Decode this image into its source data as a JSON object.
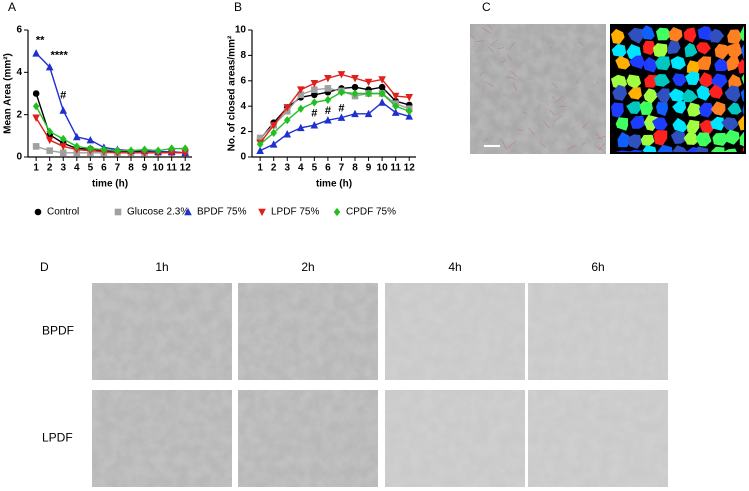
{
  "panel_labels": [
    "A",
    "B",
    "C",
    "D"
  ],
  "chart_data": [
    {
      "type": "line",
      "xlabel": "time (h)",
      "ylabel": "Mean Area (mm²)",
      "x": [
        1,
        2,
        3,
        4,
        5,
        6,
        7,
        8,
        9,
        10,
        11,
        12
      ],
      "xlim": [
        0.4,
        12.5
      ],
      "xticks": [
        1,
        2,
        3,
        4,
        5,
        6,
        7,
        8,
        9,
        10,
        11,
        12
      ],
      "ylim": [
        0,
        6
      ],
      "yticks": [
        0,
        2,
        4,
        6
      ],
      "series": [
        {
          "name": "Control",
          "color": "#000000",
          "marker": "circle",
          "values": [
            3.0,
            1.05,
            0.65,
            0.4,
            0.38,
            0.3,
            0.28,
            0.25,
            0.25,
            0.2,
            0.22,
            0.2
          ]
        },
        {
          "name": "Glucose 2.3%",
          "color": "#a0a0a0",
          "marker": "square",
          "values": [
            0.5,
            0.3,
            0.2,
            0.2,
            0.2,
            0.2,
            0.2,
            0.2,
            0.2,
            0.2,
            0.2,
            0.2
          ]
        },
        {
          "name": "BPDF 75%",
          "color": "#1f2fd0",
          "marker": "triangle-up",
          "values": [
            4.9,
            4.25,
            2.2,
            0.95,
            0.8,
            0.45,
            0.35,
            0.3,
            0.3,
            0.25,
            0.25,
            0.2
          ]
        },
        {
          "name": "LPDF 75%",
          "color": "#e0201c",
          "marker": "triangle-down",
          "values": [
            1.85,
            0.8,
            0.5,
            0.35,
            0.3,
            0.25,
            0.2,
            0.2,
            0.2,
            0.2,
            0.2,
            0.2
          ]
        },
        {
          "name": "CPDF 75%",
          "color": "#20c020",
          "marker": "diamond",
          "values": [
            2.4,
            1.2,
            0.85,
            0.5,
            0.4,
            0.35,
            0.3,
            0.3,
            0.35,
            0.3,
            0.4,
            0.4
          ]
        }
      ],
      "annotations": [
        {
          "text": "**",
          "x": 1.3,
          "y": 5.5
        },
        {
          "text": "****",
          "x": 2.7,
          "y": 4.8
        },
        {
          "text": "#",
          "x": 3,
          "y": 2.9
        }
      ]
    },
    {
      "type": "line",
      "xlabel": "time (h)",
      "ylabel": "No. of closed areas/mm²",
      "x": [
        1,
        2,
        3,
        4,
        5,
        6,
        7,
        8,
        9,
        10,
        11,
        12
      ],
      "xlim": [
        0.4,
        12.5
      ],
      "xticks": [
        1,
        2,
        3,
        4,
        5,
        6,
        7,
        8,
        9,
        10,
        11,
        12
      ],
      "ylim": [
        0,
        10
      ],
      "yticks": [
        0,
        2,
        4,
        6,
        8,
        10
      ],
      "series": [
        {
          "color": "#000000",
          "marker": "circle",
          "values": [
            1.4,
            2.7,
            3.9,
            4.7,
            4.9,
            5.1,
            5.4,
            5.5,
            5.3,
            5.5,
            4.4,
            4.1
          ]
        },
        {
          "color": "#a0a0a0",
          "marker": "square",
          "values": [
            1.5,
            2.5,
            3.6,
            4.9,
            5.3,
            5.4,
            5.2,
            4.8,
            5.0,
            5.0,
            4.2,
            3.8
          ]
        },
        {
          "color": "#1f2fd0",
          "marker": "triangle-up",
          "values": [
            0.5,
            1.0,
            1.8,
            2.3,
            2.5,
            2.9,
            3.1,
            3.4,
            3.4,
            4.3,
            3.5,
            3.2
          ]
        },
        {
          "color": "#e0201c",
          "marker": "triangle-down",
          "values": [
            1.1,
            2.5,
            3.9,
            5.3,
            5.8,
            6.2,
            6.5,
            6.2,
            5.9,
            6.1,
            4.8,
            4.7
          ]
        },
        {
          "color": "#20c020",
          "marker": "diamond",
          "values": [
            1.0,
            1.9,
            2.9,
            3.8,
            4.3,
            4.5,
            5.1,
            5.0,
            5.0,
            5.0,
            4.0,
            3.6
          ]
        }
      ],
      "annotations": [
        {
          "text": "#",
          "x": 5,
          "y": 3.4
        },
        {
          "text": "#",
          "x": 6,
          "y": 3.6
        },
        {
          "text": "#",
          "x": 7,
          "y": 3.8
        }
      ]
    }
  ],
  "image_grid": {
    "columns": [
      "1h",
      "2h",
      "4h",
      "6h"
    ],
    "rows": [
      "BPDF",
      "LPDF"
    ]
  }
}
